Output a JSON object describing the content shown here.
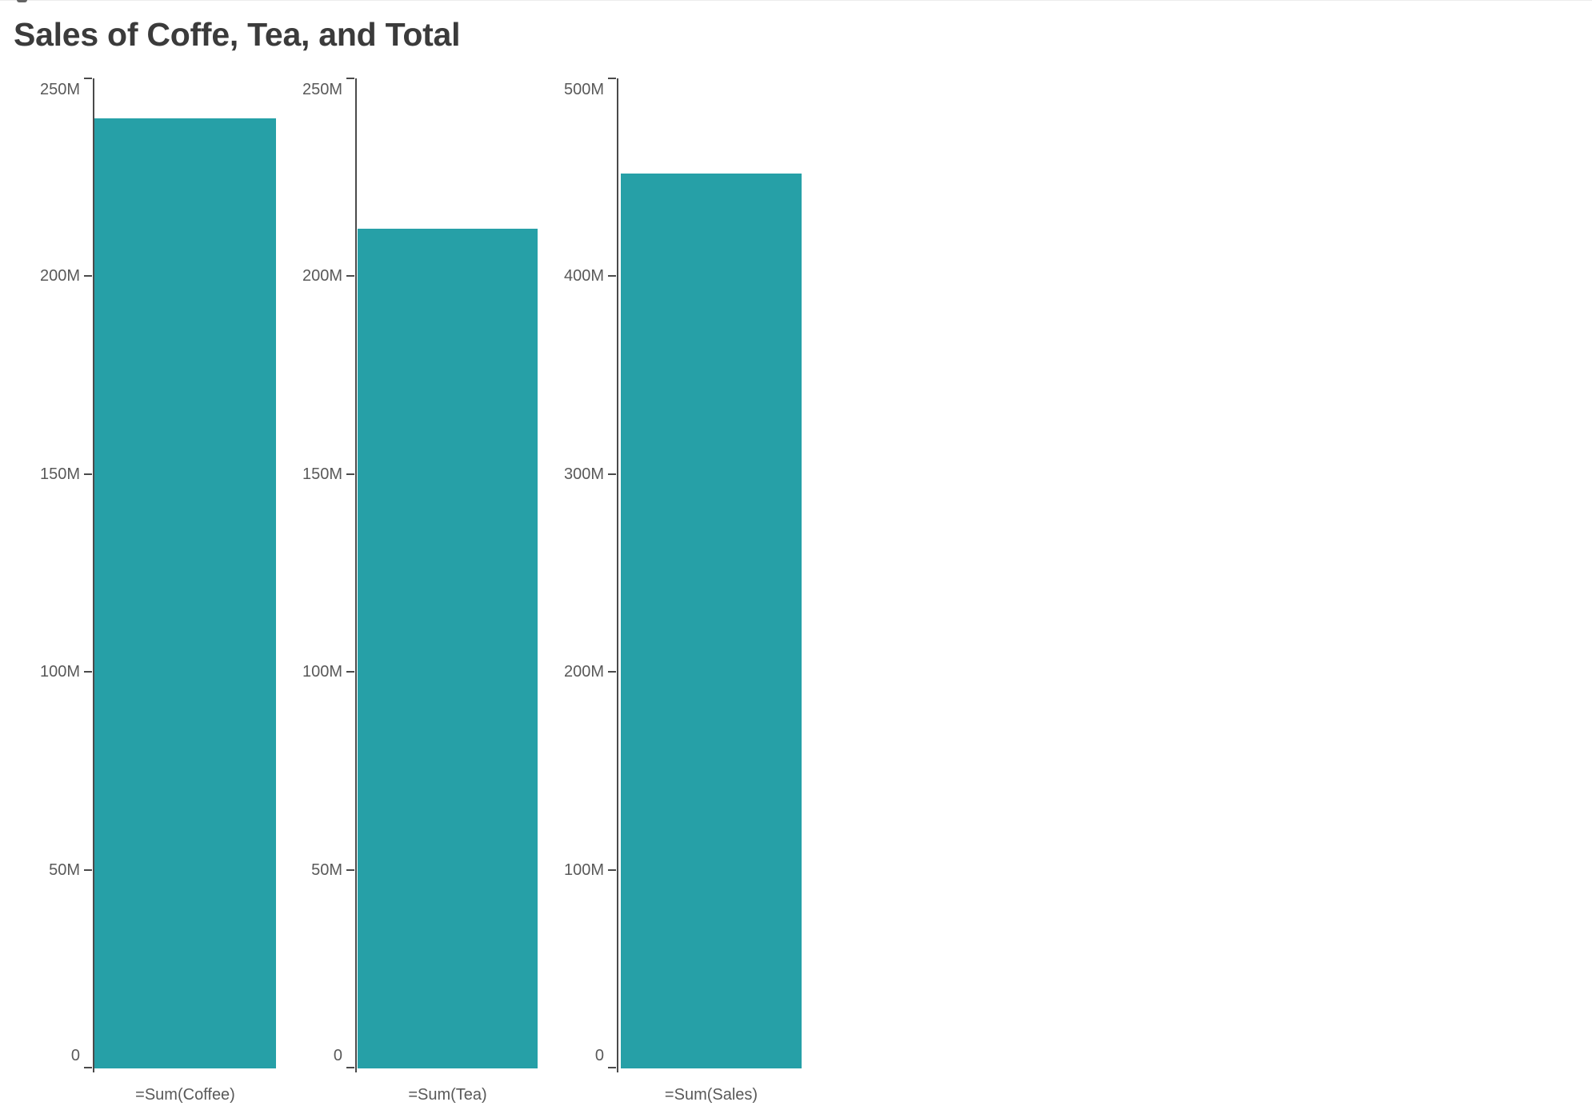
{
  "page": {
    "background": "#ffffff"
  },
  "header": {
    "title": "Sales of Coffe, Tea, and Total"
  },
  "colors": {
    "bar": "#26a0a7",
    "axis_line": "#4a4a4a",
    "tick": "#4a4a4a",
    "tick_label": "#595959",
    "measure_label": "#595959",
    "title": "#3b3b3b",
    "top_hairline": "#ececec",
    "top_left_mark": "#4a4a4a"
  },
  "chart_data": {
    "type": "bar",
    "title": "Sales of Coffe, Tea, and Total",
    "unit": "M = millions",
    "grid": false,
    "legend": "none",
    "panels": [
      {
        "measure_label": "=Sum(Coffee)",
        "value_m": 240,
        "value_display": "240M",
        "y_axis": {
          "min_m": 0,
          "max_m": 250,
          "tick_step_m": 50,
          "tick_labels": [
            "0",
            "50M",
            "100M",
            "150M",
            "200M",
            "250M"
          ]
        }
      },
      {
        "measure_label": "=Sum(Tea)",
        "value_m": 212,
        "value_display": "212M",
        "y_axis": {
          "min_m": 0,
          "max_m": 250,
          "tick_step_m": 50,
          "tick_labels": [
            "0",
            "50M",
            "100M",
            "150M",
            "200M",
            "250M"
          ]
        }
      },
      {
        "measure_label": "=Sum(Sales)",
        "value_m": 452,
        "value_display": "452M",
        "y_axis": {
          "min_m": 0,
          "max_m": 500,
          "tick_step_m": 100,
          "tick_labels": [
            "0",
            "100M",
            "200M",
            "300M",
            "400M",
            "500M"
          ]
        }
      }
    ]
  }
}
